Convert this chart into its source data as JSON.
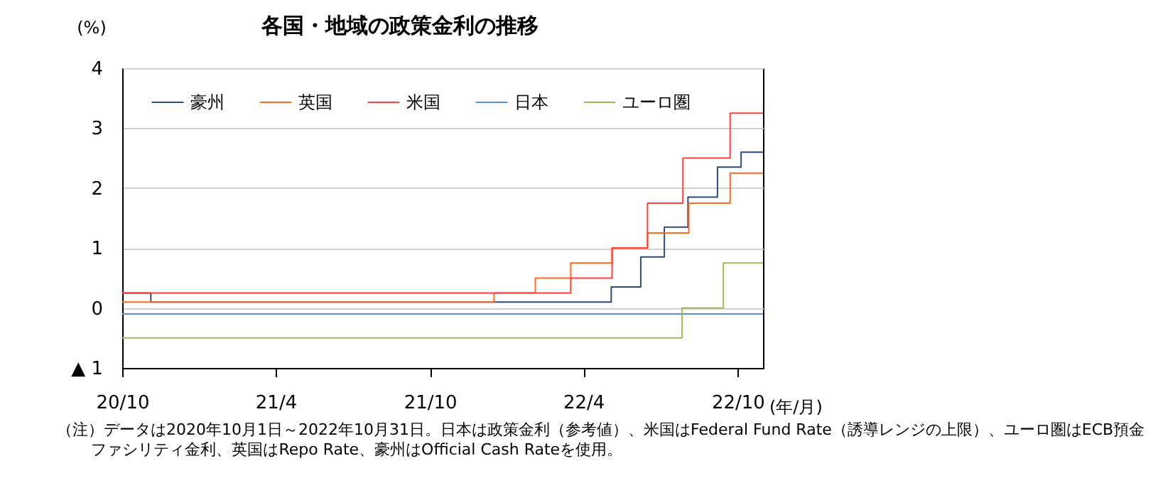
{
  "chart_data": {
    "type": "step",
    "title": "各国・地域の政策金利の推移",
    "ylabel": "(%)",
    "xlabel": "(年/月)",
    "xlim": [
      "2020-10-01",
      "2022-10-31"
    ],
    "xticks": [
      {
        "value": "2020-10-01",
        "label": "20/10"
      },
      {
        "value": "2021-04-01",
        "label": "21/4"
      },
      {
        "value": "2021-10-01",
        "label": "21/10"
      },
      {
        "value": "2022-04-01",
        "label": "22/4"
      },
      {
        "value": "2022-10-01",
        "label": "22/10"
      }
    ],
    "ylim": [
      -1,
      4
    ],
    "yticks": [
      {
        "value": -1,
        "label": "▲ 1"
      },
      0,
      1,
      2,
      3,
      4
    ],
    "grid": "y",
    "legend": "top",
    "series": [
      {
        "name": "豪州",
        "color": "#2f4a7a",
        "x": [
          "2020-10-01",
          "2020-11-04",
          "2022-05-04",
          "2022-06-08",
          "2022-07-06",
          "2022-08-03",
          "2022-09-07",
          "2022-10-05",
          "2022-10-31"
        ],
        "values": [
          0.25,
          0.1,
          0.35,
          0.85,
          1.35,
          1.85,
          2.35,
          2.6,
          2.6
        ]
      },
      {
        "name": "英国",
        "color": "#ff6a1a",
        "x": [
          "2020-10-01",
          "2021-12-16",
          "2022-02-03",
          "2022-03-17",
          "2022-05-05",
          "2022-06-16",
          "2022-08-04",
          "2022-09-22",
          "2022-10-31"
        ],
        "values": [
          0.1,
          0.25,
          0.5,
          0.75,
          1.0,
          1.25,
          1.75,
          2.25,
          2.25
        ]
      },
      {
        "name": "米国",
        "color": "#ff4040",
        "x": [
          "2020-10-01",
          "2022-03-17",
          "2022-05-05",
          "2022-06-16",
          "2022-07-28",
          "2022-09-22",
          "2022-10-31"
        ],
        "values": [
          0.25,
          0.5,
          1.0,
          1.75,
          2.5,
          3.25,
          3.25
        ]
      },
      {
        "name": "日本",
        "color": "#5b8fd6",
        "x": [
          "2020-10-01",
          "2022-10-31"
        ],
        "values": [
          -0.1,
          -0.1
        ]
      },
      {
        "name": "ユーロ圏",
        "color": "#9bbb59",
        "x": [
          "2020-10-01",
          "2022-07-27",
          "2022-09-14",
          "2022-10-31"
        ],
        "values": [
          -0.5,
          0,
          0.75,
          0.75
        ]
      }
    ],
    "annotations": [
      "（注）データは2020年10月1日～2022年10月31日。日本は政策金利（参考値）、米国はFederal Fund Rate（誘導レンジの上限）、ユーロ圏はECB預金ファシリティ金利、英国はRepo Rate、豪州はOfficial Cash Rateを使用。"
    ]
  }
}
